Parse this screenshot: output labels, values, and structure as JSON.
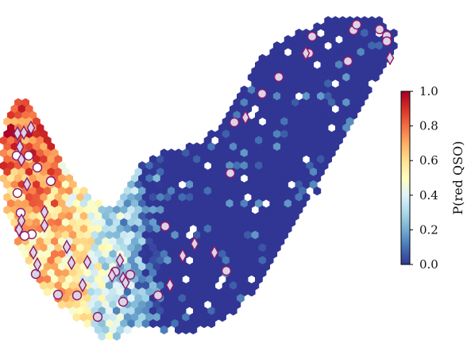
{
  "chart_data": {
    "type": "heatmap",
    "description": "Hexbin map; colour encodes P(red QSO). Overlaid markers are individual sources (circles and diamonds).",
    "colorbar": {
      "label": "P(red QSO)",
      "min": 0.0,
      "max": 1.0,
      "ticks": [
        0.0,
        0.2,
        0.4,
        0.6,
        0.8,
        1.0
      ],
      "tick_labels": [
        "0.0",
        "0.2",
        "0.4",
        "0.6",
        "0.8",
        "1.0"
      ],
      "colormap": [
        "#313695",
        "#4575b4",
        "#74add1",
        "#abd9e9",
        "#e0f3f8",
        "#ffffbf",
        "#fee090",
        "#fdae61",
        "#f46d43",
        "#d73027",
        "#a50026"
      ]
    },
    "marker_color": "#8b1a6b",
    "marker_fill": "#dcd4e6",
    "axes": {
      "x_visible": false,
      "y_visible": false,
      "grid": false
    }
  }
}
